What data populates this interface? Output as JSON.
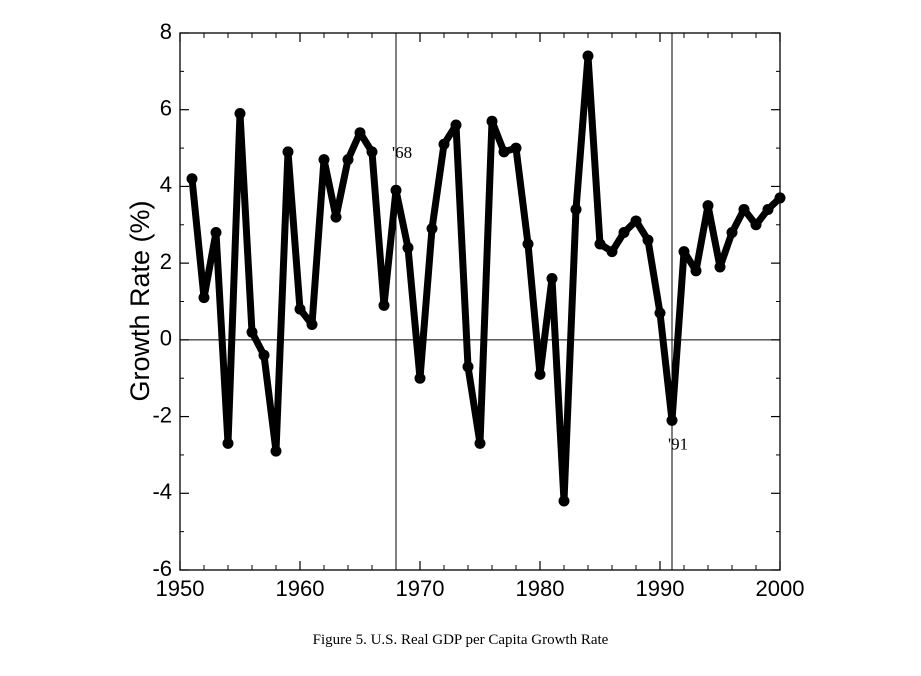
{
  "chart_data": {
    "type": "line",
    "title": "",
    "caption": "Figure 5.  U.S. Real GDP per Capita Growth Rate",
    "xlabel": "",
    "ylabel": "Growth Rate (%)",
    "xlim": [
      1950,
      2000
    ],
    "ylim": [
      -6,
      8
    ],
    "xticks": [
      1950,
      1960,
      1970,
      1980,
      1990,
      2000
    ],
    "yticks": [
      -6,
      -4,
      -2,
      0,
      2,
      4,
      6,
      8
    ],
    "reference_lines": {
      "vertical": [
        1968,
        1991
      ],
      "horizontal": [
        0
      ]
    },
    "annotations": [
      {
        "text": "'68",
        "x": 1968,
        "y": 4.9
      },
      {
        "text": "'91",
        "x": 1991,
        "y": -2.7
      }
    ],
    "grid": false,
    "legend": "none",
    "line_color": "#000000",
    "marker": "circle",
    "series": [
      {
        "x": [
          1951,
          1952,
          1953,
          1954,
          1955,
          1956,
          1957,
          1958,
          1959,
          1960,
          1961,
          1962,
          1963,
          1964,
          1965,
          1966,
          1967,
          1968,
          1969,
          1970,
          1971,
          1972,
          1973,
          1974,
          1975,
          1976,
          1977,
          1978,
          1979,
          1980,
          1981,
          1982,
          1983,
          1984,
          1985,
          1986,
          1987,
          1988,
          1989,
          1990,
          1991,
          1992,
          1993,
          1994,
          1995,
          1996,
          1997,
          1998,
          1999,
          2000
        ],
        "values": [
          4.2,
          1.1,
          2.8,
          -2.7,
          5.9,
          0.2,
          -0.4,
          -2.9,
          4.9,
          0.8,
          0.4,
          4.7,
          3.2,
          4.7,
          5.4,
          4.9,
          0.9,
          3.9,
          2.4,
          -1.0,
          2.9,
          5.1,
          5.6,
          -0.7,
          -2.7,
          5.7,
          4.9,
          5.0,
          2.5,
          -0.9,
          1.6,
          -4.2,
          3.4,
          7.4,
          2.5,
          2.3,
          2.8,
          3.1,
          2.6,
          0.7,
          -2.1,
          2.3,
          1.8,
          3.5,
          1.9,
          2.8,
          3.4,
          3.0,
          3.4,
          3.7
        ]
      }
    ]
  }
}
